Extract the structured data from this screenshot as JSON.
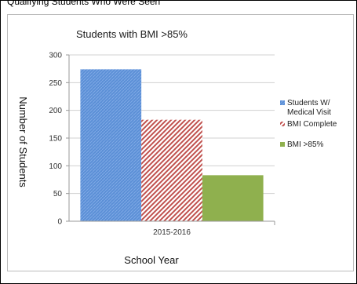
{
  "caption": "Qualifying Students Who Were Seen",
  "chart_data": {
    "type": "bar",
    "title": "Students with BMI >85%",
    "xlabel": "School Year",
    "ylabel": "Number of Students",
    "categories": [
      "2015-2016"
    ],
    "ylim": [
      0,
      300
    ],
    "yticks": [
      0,
      50,
      100,
      150,
      200,
      250,
      300
    ],
    "grid": true,
    "legend_position": "right",
    "series": [
      {
        "name": "Students W/ Medical Visit",
        "values": [
          274
        ],
        "color": "#5b8fd6",
        "pattern": "fine-diagonal"
      },
      {
        "name": "BMI Complete",
        "values": [
          183
        ],
        "color": "#c0504d",
        "pattern": "diagonal-stripes"
      },
      {
        "name": "BMI >85%",
        "values": [
          83
        ],
        "color": "#8fb04e",
        "pattern": "solid"
      }
    ]
  }
}
